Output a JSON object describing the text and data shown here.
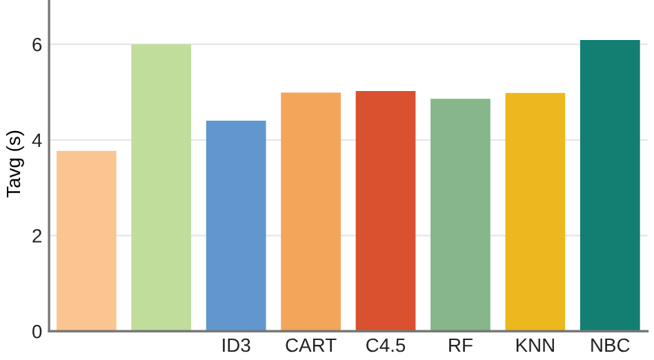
{
  "chart_data": {
    "type": "bar",
    "ylabel": "Tavg (s)",
    "categories": [
      null,
      null,
      "ID3",
      "CART",
      "C4.5",
      "RF",
      "KNN",
      "NBC"
    ],
    "values": [
      3.77,
      6.0,
      4.4,
      4.99,
      5.02,
      4.86,
      4.98,
      6.09
    ],
    "colors": [
      "#fbc592",
      "#c1dd9b",
      "#6097cf",
      "#f3a55a",
      "#d9512f",
      "#86b68a",
      "#ecb81e",
      "#137e72"
    ],
    "ylim": [
      0,
      7
    ],
    "yticks": [
      0,
      2,
      4,
      6
    ],
    "grid": "y"
  }
}
